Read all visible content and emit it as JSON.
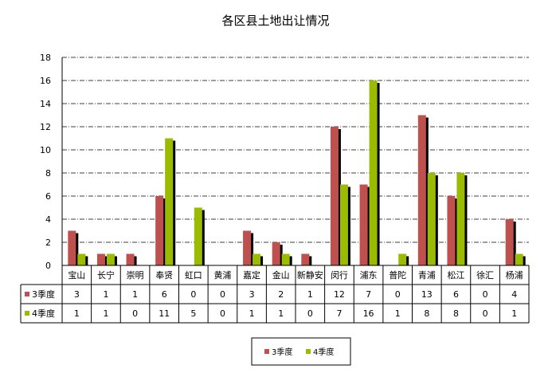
{
  "chart_data": {
    "type": "bar",
    "title": "各区县土地出让情况",
    "categories": [
      "宝山",
      "长宁",
      "崇明",
      "奉贤",
      "虹口",
      "黄浦",
      "嘉定",
      "金山",
      "新静安",
      "闵行",
      "浦东",
      "普陀",
      "青浦",
      "松江",
      "徐汇",
      "杨浦"
    ],
    "series": [
      {
        "name": "3季度",
        "values": [
          3,
          1,
          1,
          6,
          0,
          0,
          3,
          2,
          1,
          12,
          7,
          0,
          13,
          6,
          0,
          4
        ]
      },
      {
        "name": "4季度",
        "values": [
          1,
          1,
          0,
          11,
          5,
          0,
          1,
          1,
          0,
          7,
          16,
          1,
          8,
          8,
          0,
          1
        ]
      }
    ],
    "ylim": [
      0,
      18
    ],
    "yticks": [
      0,
      2,
      4,
      6,
      8,
      10,
      12,
      14,
      16,
      18
    ],
    "grid": true,
    "legend_position": "bottom",
    "data_table": true
  },
  "colors": {
    "series": [
      "#C0504D",
      "#9BBB00"
    ],
    "shadow": "#000000",
    "grid": "#000000",
    "axis": "#000000"
  }
}
